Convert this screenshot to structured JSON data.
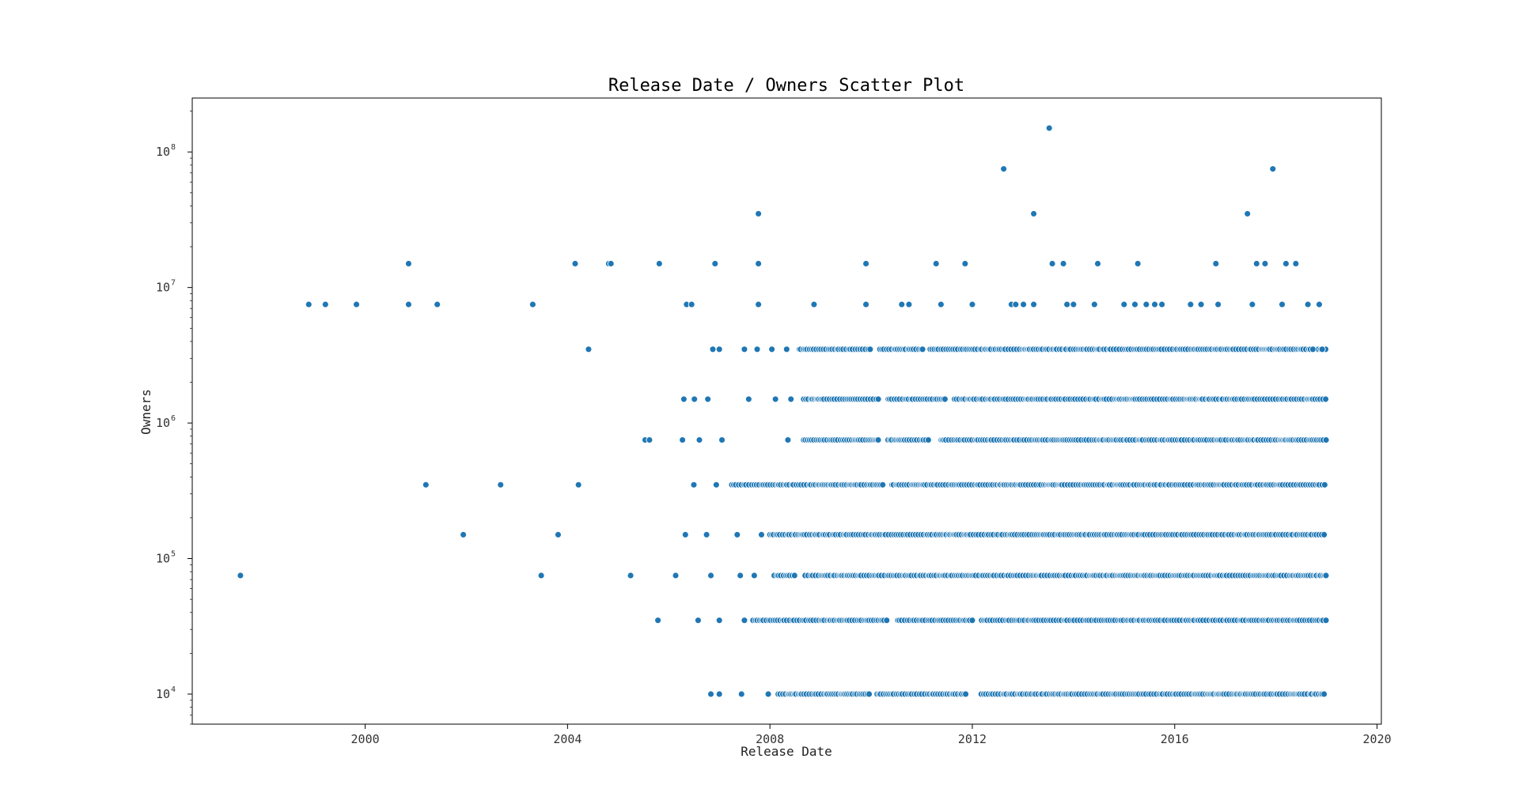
{
  "chart_data": {
    "type": "scatter",
    "title": "Release Date / Owners Scatter Plot",
    "xlabel": "Release Date",
    "ylabel": "Owners",
    "x_type": "date",
    "y_scale": "log",
    "xlim": [
      "1996-08-01",
      "2020-02-01"
    ],
    "ylim": [
      6000,
      250000000
    ],
    "x_ticks": [
      {
        "value": "2000-01-01",
        "label": "2000"
      },
      {
        "value": "2004-01-01",
        "label": "2004"
      },
      {
        "value": "2008-01-01",
        "label": "2008"
      },
      {
        "value": "2012-01-01",
        "label": "2012"
      },
      {
        "value": "2016-01-01",
        "label": "2016"
      },
      {
        "value": "2020-01-01",
        "label": "2020"
      }
    ],
    "y_ticks": [
      {
        "value": 10000,
        "base": "10",
        "exp": "4"
      },
      {
        "value": 100000,
        "base": "10",
        "exp": "5"
      },
      {
        "value": 1000000,
        "base": "10",
        "exp": "6"
      },
      {
        "value": 10000000,
        "base": "10",
        "exp": "7"
      },
      {
        "value": 100000000,
        "base": "10",
        "exp": "8"
      }
    ],
    "grid": false,
    "legend": "none",
    "color": "#1f77b4",
    "points": [
      [
        "1997-07-15",
        75000
      ],
      [
        "1998-11-20",
        7500000
      ],
      [
        "1999-03-20",
        7500000
      ],
      [
        "1999-10-30",
        7500000
      ],
      [
        "2000-11-10",
        15000000
      ],
      [
        "2000-11-10",
        7500000
      ],
      [
        "2001-03-15",
        350000
      ],
      [
        "2001-06-05",
        7500000
      ],
      [
        "2001-12-10",
        150000
      ],
      [
        "2002-09-05",
        350000
      ],
      [
        "2003-04-25",
        7500000
      ],
      [
        "2003-06-25",
        75000
      ],
      [
        "2003-10-25",
        150000
      ],
      [
        "2004-02-25",
        15000000
      ],
      [
        "2004-03-20",
        350000
      ],
      [
        "2004-06-01",
        3500000
      ],
      [
        "2004-10-25",
        15000000
      ],
      [
        "2004-11-10",
        15000000
      ],
      [
        "2005-04-01",
        75000
      ],
      [
        "2005-07-15",
        750000
      ],
      [
        "2005-08-15",
        750000
      ],
      [
        "2005-10-15",
        35000
      ],
      [
        "2005-10-25",
        15000000
      ],
      [
        "2006-02-20",
        75000
      ],
      [
        "2006-04-10",
        750000
      ],
      [
        "2006-05-10",
        7500000
      ],
      [
        "2006-06-15",
        7500000
      ],
      [
        "2006-04-20",
        1500000
      ],
      [
        "2006-12-01",
        15000000
      ],
      [
        "2007-10-10",
        35000000
      ],
      [
        "2007-10-10",
        15000000
      ],
      [
        "2007-10-10",
        7500000
      ],
      [
        "2006-11-01",
        10000
      ],
      [
        "2007-01-01",
        10000
      ],
      [
        "2007-06-10",
        10000
      ],
      [
        "2007-12-20",
        10000
      ],
      [
        "2008-11-15",
        7500000
      ],
      [
        "2009-11-25",
        15000000
      ],
      [
        "2009-11-25",
        7500000
      ],
      [
        "2010-08-10",
        7500000
      ],
      [
        "2010-10-01",
        7500000
      ],
      [
        "2011-04-15",
        15000000
      ],
      [
        "2011-05-20",
        7500000
      ],
      [
        "2011-11-10",
        15000000
      ],
      [
        "2012-01-01",
        7500000
      ],
      [
        "2012-08-15",
        75000000
      ],
      [
        "2012-10-10",
        7500000
      ],
      [
        "2012-11-10",
        7500000
      ],
      [
        "2013-01-05",
        7500000
      ],
      [
        "2013-03-20",
        35000000
      ],
      [
        "2013-03-20",
        7500000
      ],
      [
        "2013-07-10",
        150000000
      ],
      [
        "2013-08-01",
        15000000
      ],
      [
        "2013-10-20",
        15000000
      ],
      [
        "2013-11-15",
        7500000
      ],
      [
        "2014-01-01",
        7500000
      ],
      [
        "2014-06-25",
        15000000
      ],
      [
        "2014-06-01",
        7500000
      ],
      [
        "2015-01-01",
        7500000
      ],
      [
        "2015-03-20",
        7500000
      ],
      [
        "2015-04-10",
        15000000
      ],
      [
        "2015-06-10",
        7500000
      ],
      [
        "2015-08-10",
        7500000
      ],
      [
        "2015-10-01",
        7500000
      ],
      [
        "2016-04-25",
        7500000
      ],
      [
        "2016-07-10",
        7500000
      ],
      [
        "2016-10-25",
        15000000
      ],
      [
        "2016-11-10",
        7500000
      ],
      [
        "2017-06-10",
        35000000
      ],
      [
        "2017-07-15",
        7500000
      ],
      [
        "2017-08-15",
        15000000
      ],
      [
        "2017-10-15",
        15000000
      ],
      [
        "2017-12-10",
        75000000
      ],
      [
        "2018-02-15",
        7500000
      ],
      [
        "2018-03-15",
        15000000
      ],
      [
        "2018-05-25",
        15000000
      ],
      [
        "2018-08-20",
        7500000
      ],
      [
        "2018-11-10",
        7500000
      ],
      [
        "2018-09-25",
        3500000
      ],
      [
        "2018-12-01",
        3500000
      ],
      [
        "2006-11-15",
        3500000
      ],
      [
        "2007-01-01",
        3500000
      ],
      [
        "2007-07-01",
        3500000
      ],
      [
        "2007-10-01",
        3500000
      ],
      [
        "2008-01-15",
        3500000
      ],
      [
        "2008-05-01",
        3500000
      ],
      [
        "2006-07-05",
        1500000
      ],
      [
        "2006-10-10",
        1500000
      ],
      [
        "2007-08-01",
        1500000
      ],
      [
        "2008-02-10",
        1500000
      ],
      [
        "2008-06-01",
        1500000
      ],
      [
        "2006-07-01",
        350000
      ],
      [
        "2006-12-10",
        350000
      ],
      [
        "2006-05-01",
        150000
      ],
      [
        "2006-10-01",
        150000
      ],
      [
        "2007-05-10",
        150000
      ],
      [
        "2007-11-01",
        150000
      ],
      [
        "2006-11-01",
        75000
      ],
      [
        "2007-06-01",
        75000
      ],
      [
        "2007-09-10",
        75000
      ],
      [
        "2006-08-01",
        35000
      ],
      [
        "2007-01-01",
        35000
      ],
      [
        "2007-07-01",
        35000
      ],
      [
        "2006-08-10",
        750000
      ],
      [
        "2007-01-20",
        750000
      ],
      [
        "2008-05-10",
        750000
      ]
    ],
    "dense_bands": [
      {
        "y": 3500000,
        "x_start": "2008-08-01",
        "x_end": "2018-12-31",
        "gaps": [
          [
            "2010-01-01",
            "2010-03-01"
          ],
          [
            "2011-01-15",
            "2011-03-01"
          ]
        ]
      },
      {
        "y": 1500000,
        "x_start": "2008-09-01",
        "x_end": "2018-12-31",
        "gaps": [
          [
            "2010-03-01",
            "2010-05-01"
          ],
          [
            "2011-07-01",
            "2011-08-15"
          ]
        ]
      },
      {
        "y": 750000,
        "x_start": "2008-09-01",
        "x_end": "2018-12-31",
        "gaps": [
          [
            "2010-03-01",
            "2010-05-01"
          ],
          [
            "2011-03-01",
            "2011-05-01"
          ]
        ]
      },
      {
        "y": 350000,
        "x_start": "2007-04-01",
        "x_end": "2018-12-31",
        "gaps": [
          [
            "2010-04-01",
            "2010-06-01"
          ]
        ]
      },
      {
        "y": 150000,
        "x_start": "2008-01-01",
        "x_end": "2018-12-31",
        "gaps": []
      },
      {
        "y": 75000,
        "x_start": "2008-02-01",
        "x_end": "2018-12-31",
        "gaps": [
          [
            "2008-07-01",
            "2008-09-01"
          ]
        ]
      },
      {
        "y": 35000,
        "x_start": "2007-09-01",
        "x_end": "2018-12-31",
        "gaps": [
          [
            "2012-01-01",
            "2012-03-01"
          ],
          [
            "2010-05-01",
            "2010-07-01"
          ]
        ]
      },
      {
        "y": 10000,
        "x_start": "2008-03-01",
        "x_end": "2018-12-31",
        "gaps": [
          [
            "2011-12-01",
            "2012-03-01"
          ],
          [
            "2010-01-01",
            "2010-02-01"
          ]
        ]
      }
    ]
  }
}
